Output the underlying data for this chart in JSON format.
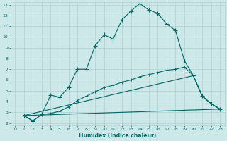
{
  "xlabel": "Humidex (Indice chaleur)",
  "bg_color": "#cce8e8",
  "grid_color": "#b0d0d0",
  "line_color": "#006666",
  "xlim": [
    -0.5,
    23.5
  ],
  "ylim": [
    1.8,
    13.2
  ],
  "xticks": [
    0,
    1,
    2,
    3,
    4,
    5,
    6,
    7,
    8,
    9,
    10,
    11,
    12,
    13,
    14,
    15,
    16,
    17,
    18,
    19,
    20,
    21,
    22,
    23
  ],
  "yticks": [
    2,
    3,
    4,
    5,
    6,
    7,
    8,
    9,
    10,
    11,
    12,
    13
  ],
  "line1_x": [
    1,
    2,
    3,
    4,
    5,
    6,
    7,
    8,
    9,
    10,
    11,
    12,
    13,
    14,
    15,
    16,
    17,
    18,
    19,
    20,
    21,
    22,
    23
  ],
  "line1_y": [
    2.7,
    2.2,
    2.8,
    4.6,
    4.4,
    5.3,
    7.0,
    7.0,
    9.2,
    10.2,
    9.8,
    11.6,
    12.4,
    13.1,
    12.5,
    12.2,
    11.2,
    10.6,
    7.8,
    6.4,
    4.5,
    3.8,
    3.3
  ],
  "line2_x": [
    1,
    2,
    3,
    4,
    5,
    6,
    7,
    8,
    9,
    10,
    11,
    12,
    13,
    14,
    15,
    16,
    17,
    18,
    19,
    20,
    21,
    22,
    23
  ],
  "line2_y": [
    2.7,
    2.2,
    2.8,
    2.9,
    3.1,
    3.5,
    4.1,
    4.5,
    4.9,
    5.3,
    5.5,
    5.8,
    6.0,
    6.3,
    6.5,
    6.7,
    6.9,
    7.0,
    7.2,
    6.4,
    4.5,
    3.8,
    3.3
  ],
  "line3_x": [
    1,
    20,
    21,
    22,
    23
  ],
  "line3_y": [
    2.7,
    6.4,
    4.5,
    3.8,
    3.3
  ],
  "line4_x": [
    1,
    23
  ],
  "line4_y": [
    2.7,
    3.3
  ]
}
